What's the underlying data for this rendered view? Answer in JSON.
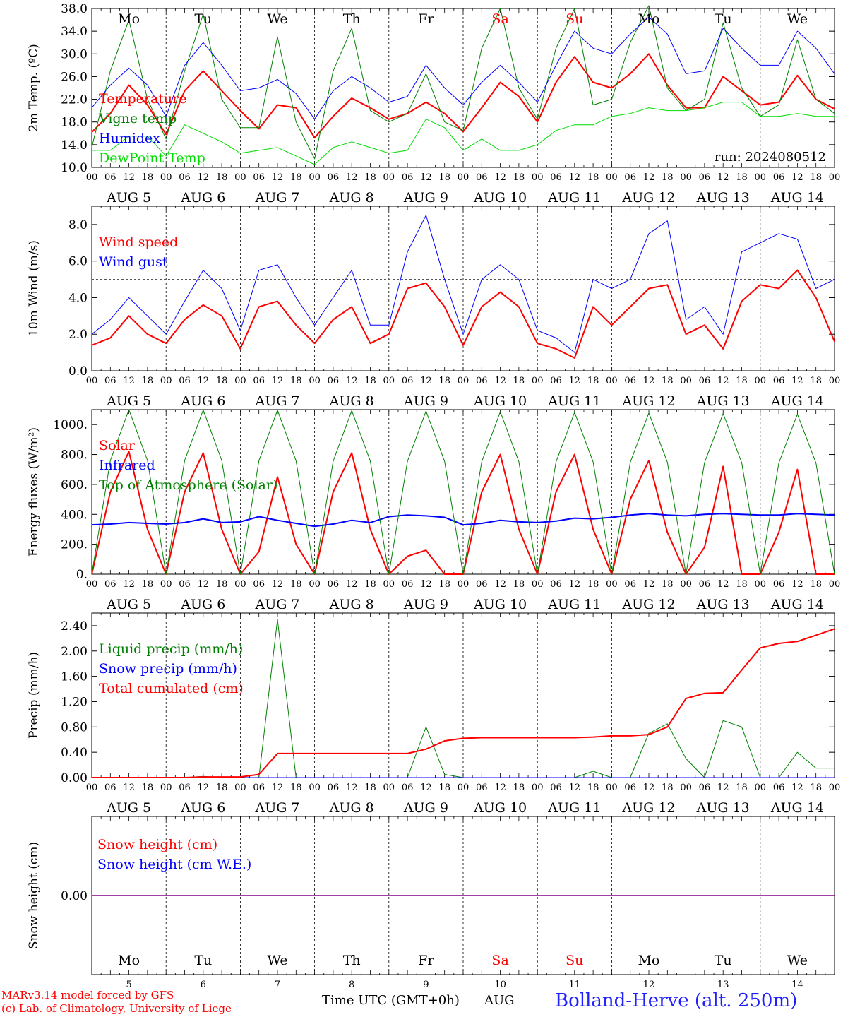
{
  "footer": {
    "model_line": "MARv3.14 model forced by GFS",
    "lab_line": "(c) Lab. of Climatology, University of Liege",
    "time_label": "Time UTC (GMT+0h)",
    "month_label": "AUG",
    "station": "Bolland-Herve (alt. 250m)"
  },
  "run_label": "run: 2024080512",
  "days": {
    "weekdays": [
      "Mo",
      "Tu",
      "We",
      "Th",
      "Fr",
      "Sa",
      "Su",
      "Mo",
      "Tu",
      "We"
    ],
    "weekend_flags": [
      false,
      false,
      false,
      false,
      false,
      true,
      true,
      false,
      false,
      false
    ],
    "dates": [
      "AUG 5",
      "AUG 6",
      "AUG 7",
      "AUG 8",
      "AUG 9",
      "AUG 10",
      "AUG 11",
      "AUG 12",
      "AUG 13",
      "AUG 14"
    ],
    "day_numbers": [
      "5",
      "6",
      "7",
      "8",
      "9",
      "10",
      "11",
      "12",
      "13",
      "14"
    ],
    "hour_ticks": [
      "00",
      "06",
      "12",
      "18"
    ]
  },
  "colors": {
    "red": "#ff0000",
    "green": "#008000",
    "blue": "#0000ff",
    "lightgreen": "#00dd00",
    "purple": "#800080",
    "station": "#2020ff"
  },
  "chart_data": [
    {
      "type": "line",
      "title": "",
      "ylabel": "2m Temp. (ºC)",
      "xlabel": "",
      "ylim": [
        10,
        38
      ],
      "yticks": [
        "10.0",
        "14.0",
        "18.0",
        "22.0",
        "26.0",
        "30.0",
        "34.0",
        "38.0"
      ],
      "x_hours": [
        0,
        6,
        12,
        18,
        24,
        30,
        36,
        42,
        48,
        54,
        60,
        66,
        72,
        78,
        84,
        90,
        96,
        102,
        108,
        114,
        120,
        126,
        132,
        138,
        144,
        150,
        156,
        162,
        168,
        174,
        180,
        186,
        192,
        198,
        204,
        210,
        216,
        222,
        228,
        234,
        240
      ],
      "series": [
        {
          "name": "Temperature",
          "color": "red",
          "values": [
            16.2,
            19.5,
            24.5,
            21,
            15.8,
            23.5,
            27,
            23.5,
            20,
            16.8,
            21,
            20.5,
            15.2,
            19,
            22.2,
            20.5,
            18.5,
            19.5,
            21.5,
            19.5,
            16.3,
            20.5,
            25,
            22.5,
            18,
            25,
            29.5,
            25,
            24,
            26.5,
            30,
            24.5,
            20.5,
            20.5,
            26,
            23.5,
            21,
            21.5,
            26.2,
            22,
            20.3
          ]
        },
        {
          "name": "Vigne temp",
          "color": "green",
          "values": [
            13.5,
            27,
            36,
            22,
            15,
            27,
            37,
            22,
            17,
            17,
            33,
            18,
            11.5,
            27,
            34.5,
            20,
            18,
            19.5,
            26.5,
            18,
            16.5,
            31,
            38,
            24,
            18.5,
            31,
            38,
            21,
            22,
            32,
            38.5,
            24,
            20,
            22,
            35.5,
            24,
            19,
            21,
            32.5,
            22,
            19.5
          ]
        },
        {
          "name": "Humidex",
          "color": "blue",
          "values": [
            20.5,
            24.5,
            27.5,
            24.5,
            19,
            28,
            32,
            28,
            23.5,
            24,
            25.5,
            23,
            18.5,
            23.5,
            26,
            24,
            21.5,
            22.5,
            28,
            24,
            21,
            25,
            28,
            25,
            21.5,
            28,
            34,
            31,
            30,
            33.5,
            36.5,
            33.5,
            26.5,
            27,
            34.5,
            31,
            28,
            28,
            34,
            31,
            26.5
          ]
        },
        {
          "name": "DewPoint Temp",
          "color": "lightgreen",
          "values": [
            13,
            13,
            15.5,
            15.5,
            12,
            17.5,
            16,
            14.5,
            12.5,
            13,
            13.5,
            12,
            10.5,
            13.5,
            14.5,
            13.5,
            12.5,
            13,
            18.5,
            17,
            13,
            15,
            13,
            13,
            14,
            16.5,
            17.5,
            17.5,
            19,
            19.5,
            20.5,
            20,
            20,
            20.5,
            21.5,
            21.5,
            19,
            19,
            19.5,
            19,
            19
          ]
        }
      ]
    },
    {
      "type": "line",
      "title": "",
      "ylabel": "10m Wind (m/s)",
      "xlabel": "",
      "ylim": [
        0,
        9
      ],
      "yticks": [
        "0.0",
        "2.0",
        "4.0",
        "6.0",
        "8.0"
      ],
      "reference_line": 5,
      "x_hours": [
        0,
        6,
        12,
        18,
        24,
        30,
        36,
        42,
        48,
        54,
        60,
        66,
        72,
        78,
        84,
        90,
        96,
        102,
        108,
        114,
        120,
        126,
        132,
        138,
        144,
        150,
        156,
        162,
        168,
        174,
        180,
        186,
        192,
        198,
        204,
        210,
        216,
        222,
        228,
        234,
        240
      ],
      "series": [
        {
          "name": "Wind speed",
          "color": "red",
          "values": [
            1.4,
            1.8,
            3,
            2,
            1.5,
            2.8,
            3.6,
            3,
            1.2,
            3.5,
            3.8,
            2.5,
            1.5,
            2.8,
            3.5,
            1.5,
            2,
            4.5,
            4.8,
            3.5,
            1.4,
            3.5,
            4.3,
            3.5,
            1.5,
            1.2,
            0.7,
            3.5,
            2.5,
            3.5,
            4.5,
            4.7,
            2,
            2.5,
            1.2,
            3.8,
            4.7,
            4.5,
            5.5,
            4,
            1.6
          ]
        },
        {
          "name": "Wind gust",
          "color": "blue",
          "values": [
            2,
            2.8,
            4,
            3,
            2,
            3.8,
            5.5,
            4.5,
            2.2,
            5.5,
            5.8,
            4,
            2.5,
            4,
            5.5,
            2.5,
            2.5,
            6.5,
            8.5,
            5,
            2,
            5,
            5.8,
            5,
            2.2,
            1.8,
            1,
            5,
            4.5,
            5,
            7.5,
            8.2,
            2.8,
            3.5,
            2,
            6.5,
            7,
            7.5,
            7.2,
            4.5,
            5
          ]
        }
      ]
    },
    {
      "type": "line",
      "title": "",
      "ylabel": "Energy fluxes (W/m²)",
      "xlabel": "",
      "ylim": [
        0,
        1100
      ],
      "yticks": [
        "0.",
        "200.",
        "400.",
        "600.",
        "800.",
        "1000."
      ],
      "x_hours": [
        0,
        6,
        12,
        18,
        24,
        30,
        36,
        42,
        48,
        54,
        60,
        66,
        72,
        78,
        84,
        90,
        96,
        102,
        108,
        114,
        120,
        126,
        132,
        138,
        144,
        150,
        156,
        162,
        168,
        174,
        180,
        186,
        192,
        198,
        204,
        210,
        216,
        222,
        228,
        234,
        240
      ],
      "series": [
        {
          "name": "Solar",
          "color": "red",
          "values": [
            0,
            550,
            820,
            300,
            0,
            550,
            810,
            300,
            0,
            150,
            650,
            200,
            0,
            550,
            810,
            300,
            0,
            120,
            160,
            0,
            0,
            550,
            800,
            300,
            0,
            550,
            800,
            300,
            0,
            500,
            760,
            280,
            0,
            180,
            720,
            0,
            0,
            280,
            700,
            0,
            0
          ]
        },
        {
          "name": "Infrared",
          "color": "blue",
          "values": [
            330,
            335,
            345,
            340,
            335,
            345,
            370,
            345,
            350,
            385,
            360,
            340,
            320,
            335,
            360,
            345,
            385,
            395,
            390,
            380,
            330,
            340,
            360,
            350,
            345,
            355,
            375,
            370,
            380,
            395,
            405,
            395,
            390,
            400,
            405,
            400,
            395,
            395,
            405,
            400,
            395
          ]
        },
        {
          "name": "Top of Atmosphere (Solar)",
          "color": "green",
          "values": [
            0,
            760,
            1100,
            760,
            0,
            760,
            1098,
            760,
            0,
            758,
            1096,
            758,
            0,
            756,
            1094,
            756,
            0,
            754,
            1090,
            754,
            0,
            752,
            1086,
            752,
            0,
            750,
            1082,
            750,
            0,
            748,
            1078,
            748,
            0,
            746,
            1074,
            746,
            0,
            744,
            1070,
            744,
            0
          ]
        }
      ]
    },
    {
      "type": "line",
      "title": "",
      "ylabel": "Precip (mm/h)",
      "xlabel": "",
      "ylim": [
        0,
        2.6
      ],
      "yticks": [
        "0.00",
        "0.40",
        "0.80",
        "1.20",
        "1.60",
        "2.00",
        "2.40"
      ],
      "x_hours": [
        0,
        6,
        12,
        18,
        24,
        30,
        36,
        42,
        48,
        54,
        60,
        66,
        72,
        78,
        84,
        90,
        96,
        102,
        108,
        114,
        120,
        126,
        132,
        138,
        144,
        150,
        156,
        162,
        168,
        174,
        180,
        186,
        192,
        198,
        204,
        210,
        216,
        222,
        228,
        234,
        240
      ],
      "series": [
        {
          "name": "Liquid precip (mm/h)",
          "color": "green",
          "values": [
            0,
            0,
            0,
            0,
            0,
            0,
            0.02,
            0,
            0,
            0,
            2.5,
            0,
            0,
            0,
            0,
            0,
            0,
            0,
            0.8,
            0.05,
            0,
            0,
            0,
            0,
            0,
            0,
            0,
            0.1,
            0,
            0,
            0.7,
            0.85,
            0.3,
            0,
            0.9,
            0.8,
            0,
            0,
            0.4,
            0.15,
            0.15
          ]
        },
        {
          "name": "Snow precip (mm/h)",
          "color": "blue",
          "values": [
            0,
            0,
            0,
            0,
            0,
            0,
            0,
            0,
            0,
            0,
            0,
            0,
            0,
            0,
            0,
            0,
            0,
            0,
            0,
            0,
            0,
            0,
            0,
            0,
            0,
            0,
            0,
            0,
            0,
            0,
            0,
            0,
            0,
            0,
            0,
            0,
            0,
            0,
            0,
            0,
            0
          ]
        },
        {
          "name": "Total cumulated (cm)",
          "color": "red",
          "values": [
            0,
            0,
            0,
            0,
            0,
            0,
            0.01,
            0.01,
            0.01,
            0.05,
            0.38,
            0.38,
            0.38,
            0.38,
            0.38,
            0.38,
            0.38,
            0.38,
            0.45,
            0.58,
            0.62,
            0.63,
            0.63,
            0.63,
            0.63,
            0.63,
            0.63,
            0.64,
            0.66,
            0.66,
            0.68,
            0.8,
            1.25,
            1.33,
            1.34,
            1.7,
            2.05,
            2.12,
            2.15,
            2.25,
            2.35
          ]
        }
      ]
    },
    {
      "type": "line",
      "title": "",
      "ylabel": "Snow height (cm)",
      "xlabel": "",
      "ylim": [
        -1,
        1
      ],
      "yticks": [
        "0.00"
      ],
      "x_hours": [
        0,
        240
      ],
      "series": [
        {
          "name": "Snow height (cm)",
          "color": "red",
          "values": [
            0,
            0
          ]
        },
        {
          "name": "Snow height (cm W.E.)",
          "color": "blue",
          "values": [
            0,
            0
          ]
        }
      ]
    }
  ]
}
